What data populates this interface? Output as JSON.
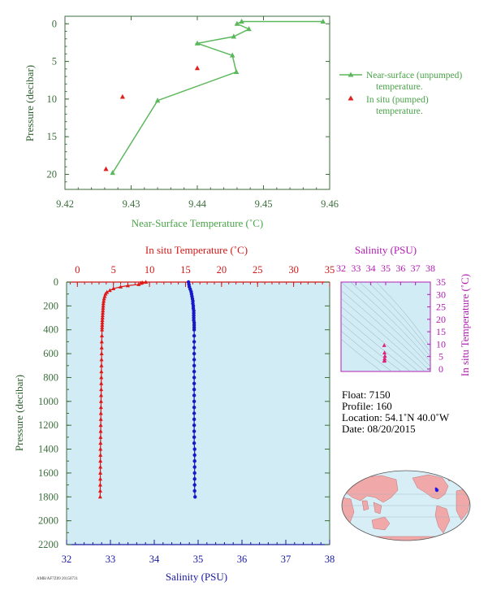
{
  "chart_data": [
    {
      "type": "line",
      "xlabel": "Near-Surface Temperature (˚C)",
      "ylabel": "Pressure (decibar)",
      "xlim": [
        9.42,
        9.46
      ],
      "ylim": [
        22,
        -1
      ],
      "x_ticks": [
        "9.42",
        "9.43",
        "9.44",
        "9.45",
        "9.46"
      ],
      "y_ticks": [
        "0",
        "5",
        "10",
        "15",
        "20"
      ],
      "legend_position": "right",
      "series": [
        {
          "name": "Near-surface (unpumped)",
          "name_line2": "temperature.",
          "color": "#5cb85c",
          "marker": "triangle",
          "points": [
            [
              9.459,
              -0.3
            ],
            [
              9.4467,
              -0.3
            ],
            [
              9.446,
              0.0
            ],
            [
              9.4478,
              0.7
            ],
            [
              9.4455,
              1.7
            ],
            [
              9.44,
              2.6
            ],
            [
              9.4453,
              4.2
            ],
            [
              9.4459,
              6.4
            ],
            [
              9.434,
              10.2
            ],
            [
              9.4272,
              19.8
            ]
          ]
        },
        {
          "name": "In situ (pumped)",
          "name_line2": "temperature.",
          "color": "#e02020",
          "marker": "triangle",
          "points": [
            [
              9.44,
              5.9
            ],
            [
              9.4287,
              9.7
            ],
            [
              9.4262,
              19.3
            ]
          ]
        }
      ]
    },
    {
      "type": "line",
      "ylabel": "Pressure (decibar)",
      "ylim": [
        2200,
        0
      ],
      "y_ticks": [
        "0",
        "200",
        "400",
        "600",
        "800",
        "1000",
        "1200",
        "1400",
        "1600",
        "1800",
        "2000",
        "2200"
      ],
      "top_axis": {
        "label": "In situ Temperature (˚C)",
        "range": [
          -1.5,
          35
        ],
        "ticks": [
          "0",
          "5",
          "10",
          "15",
          "20",
          "25",
          "30",
          "35"
        ]
      },
      "bottom_axis": {
        "label": "Salinity (PSU)",
        "range": [
          32,
          38
        ],
        "ticks": [
          "32",
          "33",
          "34",
          "35",
          "36",
          "37",
          "38"
        ]
      },
      "background": "#d2ecf6",
      "series": [
        {
          "axis": "temperature",
          "color": "#e01818",
          "marker": "triangle",
          "points": [
            [
              9.5,
              0
            ],
            [
              9.0,
              5
            ],
            [
              8.8,
              10
            ],
            [
              8.5,
              20
            ],
            [
              7.0,
              30
            ],
            [
              6.0,
              40
            ],
            [
              5.0,
              55
            ],
            [
              4.5,
              70
            ],
            [
              4.1,
              85
            ],
            [
              3.9,
              100
            ],
            [
              3.8,
              120
            ],
            [
              3.7,
              140
            ],
            [
              3.65,
              160
            ],
            [
              3.6,
              180
            ],
            [
              3.58,
              200
            ],
            [
              3.56,
              220
            ],
            [
              3.54,
              240
            ],
            [
              3.52,
              260
            ],
            [
              3.5,
              280
            ],
            [
              3.48,
              300
            ],
            [
              3.46,
              320
            ],
            [
              3.45,
              340
            ],
            [
              3.44,
              360
            ],
            [
              3.43,
              380
            ],
            [
              3.42,
              400
            ],
            [
              3.4,
              450
            ],
            [
              3.38,
              500
            ],
            [
              3.37,
              550
            ],
            [
              3.36,
              600
            ],
            [
              3.35,
              650
            ],
            [
              3.34,
              700
            ],
            [
              3.33,
              750
            ],
            [
              3.32,
              800
            ],
            [
              3.31,
              850
            ],
            [
              3.3,
              900
            ],
            [
              3.29,
              950
            ],
            [
              3.28,
              1000
            ],
            [
              3.27,
              1050
            ],
            [
              3.26,
              1100
            ],
            [
              3.25,
              1150
            ],
            [
              3.24,
              1200
            ],
            [
              3.23,
              1250
            ],
            [
              3.22,
              1300
            ],
            [
              3.21,
              1350
            ],
            [
              3.2,
              1400
            ],
            [
              3.2,
              1450
            ],
            [
              3.19,
              1500
            ],
            [
              3.19,
              1550
            ],
            [
              3.18,
              1600
            ],
            [
              3.18,
              1650
            ],
            [
              3.17,
              1700
            ],
            [
              3.17,
              1750
            ],
            [
              3.16,
              1800
            ]
          ]
        },
        {
          "axis": "salinity",
          "color": "#1818c8",
          "marker": "circle",
          "points": [
            [
              34.78,
              0
            ],
            [
              34.79,
              20
            ],
            [
              34.8,
              40
            ],
            [
              34.82,
              60
            ],
            [
              34.84,
              80
            ],
            [
              34.85,
              100
            ],
            [
              34.86,
              120
            ],
            [
              34.87,
              140
            ],
            [
              34.88,
              160
            ],
            [
              34.88,
              180
            ],
            [
              34.89,
              200
            ],
            [
              34.89,
              220
            ],
            [
              34.9,
              240
            ],
            [
              34.9,
              260
            ],
            [
              34.9,
              280
            ],
            [
              34.9,
              300
            ],
            [
              34.9,
              320
            ],
            [
              34.91,
              340
            ],
            [
              34.91,
              360
            ],
            [
              34.91,
              380
            ],
            [
              34.91,
              400
            ],
            [
              34.91,
              450
            ],
            [
              34.91,
              500
            ],
            [
              34.91,
              550
            ],
            [
              34.91,
              600
            ],
            [
              34.91,
              650
            ],
            [
              34.91,
              700
            ],
            [
              34.91,
              750
            ],
            [
              34.91,
              800
            ],
            [
              34.91,
              850
            ],
            [
              34.91,
              900
            ],
            [
              34.91,
              950
            ],
            [
              34.91,
              1000
            ],
            [
              34.91,
              1050
            ],
            [
              34.91,
              1100
            ],
            [
              34.91,
              1150
            ],
            [
              34.91,
              1200
            ],
            [
              34.91,
              1250
            ],
            [
              34.91,
              1300
            ],
            [
              34.91,
              1350
            ],
            [
              34.92,
              1400
            ],
            [
              34.92,
              1450
            ],
            [
              34.92,
              1500
            ],
            [
              34.92,
              1550
            ],
            [
              34.92,
              1600
            ],
            [
              34.92,
              1650
            ],
            [
              34.92,
              1700
            ],
            [
              34.92,
              1750
            ],
            [
              34.93,
              1800
            ]
          ]
        }
      ]
    },
    {
      "type": "scatter",
      "top_axis": {
        "label": "Salinity (PSU)",
        "range": [
          32,
          38
        ],
        "ticks": [
          "32",
          "33",
          "34",
          "35",
          "36",
          "37",
          "38"
        ]
      },
      "right_axis": {
        "label": "In situ Temperature (˚C)",
        "range": [
          -1,
          35
        ],
        "ticks": [
          "0",
          "5",
          "10",
          "15",
          "20",
          "25",
          "30",
          "35"
        ]
      },
      "color": "#e0207a",
      "points": [
        [
          34.9,
          9.5
        ],
        [
          34.92,
          6.5
        ],
        [
          34.95,
          5.2
        ],
        [
          34.93,
          4.2
        ],
        [
          34.92,
          3.5
        ],
        [
          34.91,
          3.2
        ]
      ]
    }
  ],
  "float_info": {
    "float": "Float:  7150",
    "profile": "Profile:  160",
    "location": "Location:  54.1˚N  40.0˚W",
    "date": "Date:  08/20/2015"
  },
  "footer": {
    "stamp": "AMB/AF7Z09 20150731"
  },
  "map": {
    "land_color": "#f0a8a8",
    "ocean_color": "#d8eef6",
    "marker_color": "#1a1ae0"
  }
}
